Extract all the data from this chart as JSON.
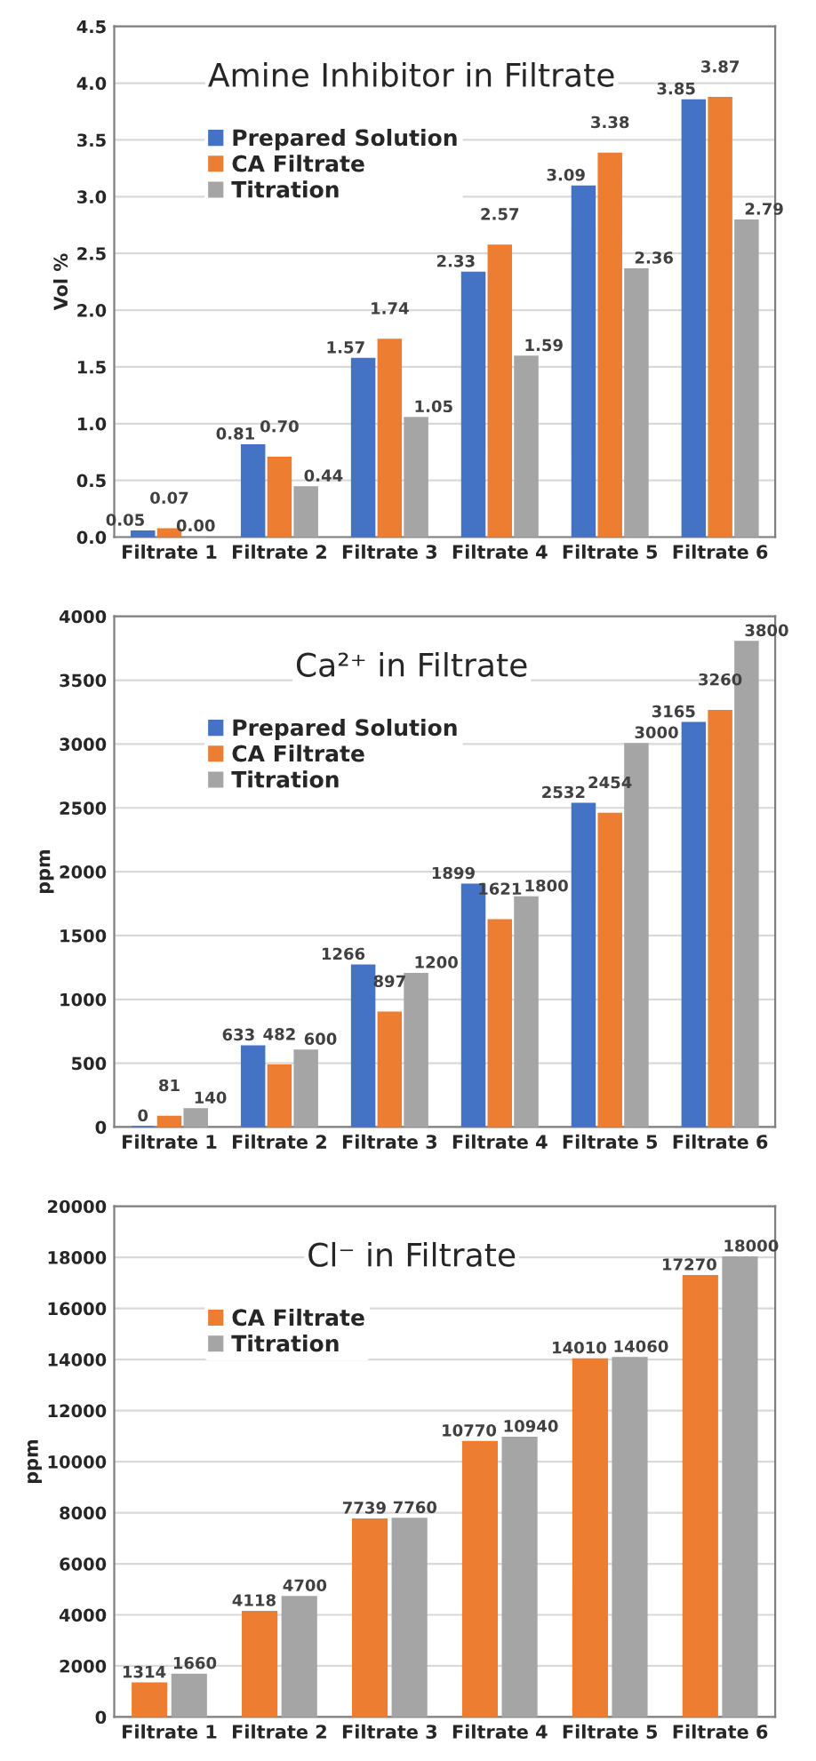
{
  "chart_data": [
    {
      "type": "bar",
      "title": "Amine Inhibitor in Filtrate",
      "ylabel": "Vol %",
      "categories": [
        "Filtrate 1",
        "Filtrate 2",
        "Filtrate 3",
        "Filtrate 4",
        "Filtrate 5",
        "Filtrate 6"
      ],
      "ylim": [
        0,
        4.5
      ],
      "yticks": [
        {
          "value": 0,
          "label": "0.0"
        },
        {
          "value": 0.5,
          "label": "0.5"
        },
        {
          "value": 1,
          "label": "1.0"
        },
        {
          "value": 1.5,
          "label": "1.5"
        },
        {
          "value": 2,
          "label": "2.0"
        },
        {
          "value": 2.5,
          "label": "2.5"
        },
        {
          "value": 3,
          "label": "3.0"
        },
        {
          "value": 3.5,
          "label": "3.5"
        },
        {
          "value": 4,
          "label": "4.0"
        },
        {
          "value": 4.5,
          "label": "4.5"
        }
      ],
      "grid": "y",
      "legend": "top left",
      "series": [
        {
          "name": "Prepared Solution",
          "color": "#4472c4",
          "values": [
            0.05,
            0.81,
            1.57,
            2.33,
            3.09,
            3.85
          ],
          "value_labels": [
            "0.05",
            "0.81",
            "1.57",
            "2.33",
            "3.09",
            "3.85"
          ]
        },
        {
          "name": "CA Filtrate",
          "color": "#ed7d31",
          "values": [
            0.07,
            0.7,
            1.74,
            2.57,
            3.38,
            3.87
          ],
          "value_labels": [
            "0.07",
            "0.70",
            "1.74",
            "2.57",
            "3.38",
            "3.87"
          ]
        },
        {
          "name": "Titration",
          "color": "#a5a5a5",
          "values": [
            0.0,
            0.44,
            1.05,
            1.59,
            2.36,
            2.79
          ],
          "value_labels": [
            "0.00",
            "0.44",
            "1.05",
            "1.59",
            "2.36",
            "2.79"
          ]
        }
      ]
    },
    {
      "type": "bar",
      "title": "Ca²⁺ in Filtrate",
      "ylabel": "ppm",
      "categories": [
        "Filtrate 1",
        "Filtrate 2",
        "Filtrate 3",
        "Filtrate 4",
        "Filtrate 5",
        "Filtrate 6"
      ],
      "ylim": [
        0,
        4000
      ],
      "yticks": [
        0,
        500,
        1000,
        1500,
        2000,
        2500,
        3000,
        3500,
        4000
      ],
      "grid": "y",
      "legend": "top left",
      "data_labels": true,
      "series": [
        {
          "name": "Prepared Solution",
          "color": "#4472c4",
          "values": [
            0,
            633,
            1266,
            1899,
            2532,
            3165
          ]
        },
        {
          "name": "CA Filtrate",
          "color": "#ed7d31",
          "values": [
            81,
            482,
            897,
            1621,
            2454,
            3260
          ]
        },
        {
          "name": "Titration",
          "color": "#a5a5a5",
          "values": [
            140,
            600,
            1200,
            1800,
            3000,
            3800
          ]
        }
      ]
    },
    {
      "type": "bar",
      "title": "Cl⁻ in Filtrate",
      "ylabel": "ppm",
      "categories": [
        "Filtrate 1",
        "Filtrate 2",
        "Filtrate 3",
        "Filtrate 4",
        "Filtrate 5",
        "Filtrate 6"
      ],
      "ylim": [
        0,
        20000
      ],
      "yticks": [
        0,
        2000,
        4000,
        6000,
        8000,
        10000,
        12000,
        14000,
        16000,
        18000,
        20000
      ],
      "grid": "y",
      "legend": "top left",
      "data_labels": true,
      "series": [
        {
          "name": "CA Filtrate",
          "color": "#ed7d31",
          "values": [
            1314,
            4118,
            7739,
            10770,
            14010,
            17270
          ]
        },
        {
          "name": "Titration",
          "color": "#a5a5a5",
          "values": [
            1660,
            4700,
            7760,
            10940,
            14060,
            18000
          ]
        }
      ]
    }
  ]
}
